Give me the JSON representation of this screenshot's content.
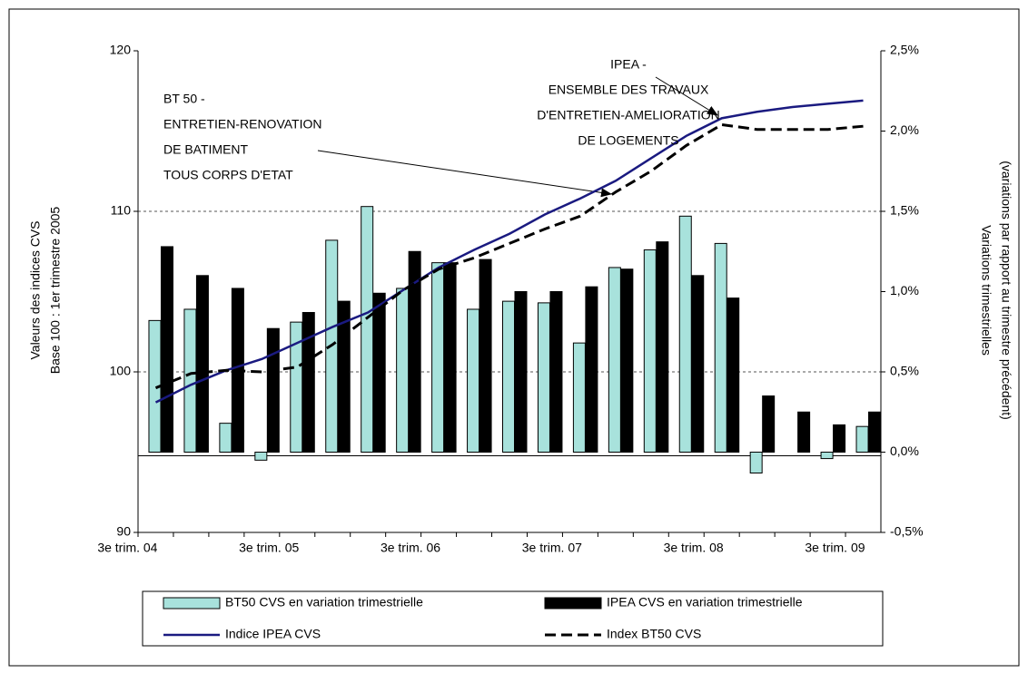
{
  "chart_data": {
    "type": "combo",
    "categories": [
      "3e trim. 04",
      null,
      null,
      null,
      "3e trim. 05",
      null,
      null,
      null,
      "3e trim. 06",
      null,
      null,
      null,
      "3e trim. 07",
      null,
      null,
      null,
      "3e trim. 08",
      null,
      null,
      null,
      "3e trim. 09"
    ],
    "ylim": [
      90,
      120
    ],
    "yticks": [
      90,
      100,
      110,
      120
    ],
    "y2lim": [
      -0.5,
      2.5
    ],
    "y2ticks": [
      {
        "value": -0.5,
        "label": "-0,5%"
      },
      {
        "value": 0,
        "label": "0,0%"
      },
      {
        "value": 0.5,
        "label": "0,5%"
      },
      {
        "value": 1,
        "label": "1,0%"
      },
      {
        "value": 1.5,
        "label": "1,5%"
      },
      {
        "value": 2,
        "label": "2,0%"
      },
      {
        "value": 2.5,
        "label": "2,5%"
      }
    ],
    "ylabel": [
      "Valeurs des indices CVS",
      "Base 100 : 1er trimestre 2005"
    ],
    "y2label": [
      "Variations trimestrielles",
      "(variations par rapport au trimestre précédent)"
    ],
    "grid": true,
    "legend": "bottom",
    "series": [
      {
        "name": "BT50 CVS en variation trimestrielle",
        "type": "bar",
        "axis": "y2",
        "color": "#a8e2dc",
        "values": [
          0.82,
          0.89,
          0.18,
          -0.05,
          0.81,
          1.32,
          1.53,
          1.02,
          1.18,
          0.89,
          0.94,
          0.93,
          0.68,
          1.15,
          1.26,
          1.47,
          1.3,
          -0.13,
          0.0,
          -0.04,
          0.16
        ]
      },
      {
        "name": "IPEA CVS en variation trimestrielle",
        "type": "bar",
        "axis": "y2",
        "color": "#000000",
        "values": [
          1.28,
          1.1,
          1.02,
          0.77,
          0.87,
          0.94,
          0.99,
          1.25,
          1.18,
          1.2,
          1.0,
          1.0,
          1.03,
          1.14,
          1.31,
          1.1,
          0.96,
          0.35,
          0.25,
          0.17,
          0.25
        ]
      },
      {
        "name": "Indice IPEA CVS",
        "type": "line",
        "color": "#1a1a80",
        "dash": false,
        "values": [
          98.1,
          99.2,
          100.1,
          100.8,
          101.8,
          102.8,
          103.7,
          105.1,
          106.5,
          107.6,
          108.6,
          109.8,
          110.8,
          111.9,
          113.3,
          114.7,
          115.8,
          116.2,
          116.5,
          116.7,
          116.9
        ]
      },
      {
        "name": "Index BT50 CVS",
        "type": "line",
        "color": "#000000",
        "dash": true,
        "values": [
          99.0,
          99.9,
          100.1,
          100.0,
          100.3,
          101.7,
          103.4,
          105.1,
          106.4,
          107.1,
          108.0,
          108.9,
          109.7,
          111.2,
          112.5,
          114.1,
          115.4,
          115.1,
          115.1,
          115.1,
          115.3
        ]
      }
    ],
    "annotations": [
      {
        "lines": [
          "IPEA -",
          "ENSEMBLE DES TRAVAUX",
          "D'ENTRETIEN-AMELIORATION",
          "DE LOGEMENTS"
        ]
      },
      {
        "lines": [
          "BT 50 -",
          "ENTRETIEN-RENOVATION",
          "DE BATIMENT",
          "TOUS CORPS D'ETAT"
        ]
      }
    ]
  }
}
